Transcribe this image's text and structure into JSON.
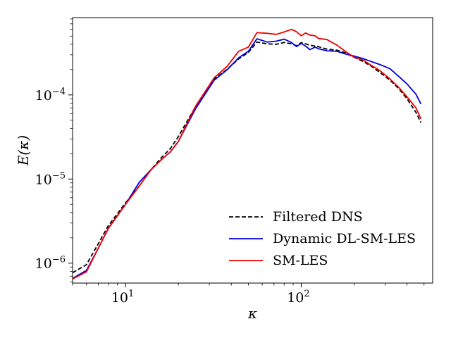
{
  "chart_data": {
    "type": "line",
    "title": "",
    "xlabel": "κ",
    "ylabel": "E(κ)",
    "xscale": "log",
    "yscale": "log",
    "xlim": [
      5,
      560
    ],
    "ylim": [
      5.8e-07,
      0.00083
    ],
    "xticks": [
      {
        "value": 10,
        "base": "10",
        "exp": "1"
      },
      {
        "value": 100,
        "base": "10",
        "exp": "2"
      }
    ],
    "yticks": [
      {
        "value": 1e-06,
        "base": "10",
        "exp": "−6"
      },
      {
        "value": 1e-05,
        "base": "10",
        "exp": "−5"
      },
      {
        "value": 0.0001,
        "base": "10",
        "exp": "−4"
      }
    ],
    "legend_position": "lower-right",
    "series": [
      {
        "name": "Filtered DNS",
        "color": "#000000",
        "style": "dashed",
        "x": [
          5,
          6,
          7,
          8,
          10,
          12,
          14,
          16,
          18,
          20,
          25,
          32,
          38,
          44,
          50,
          56,
          64,
          72,
          80,
          88,
          94,
          100,
          106,
          112,
          125,
          140,
          160,
          180,
          200,
          225,
          250,
          280,
          320,
          360,
          400,
          450,
          480
        ],
        "y": [
          7.7e-07,
          9.6e-07,
          1.7e-06,
          2.8e-06,
          5.2e-06,
          8.3e-06,
          1.3e-05,
          1.8e-05,
          2.3e-05,
          3.2e-05,
          7.2e-05,
          0.000155,
          0.000202,
          0.000268,
          0.00032,
          0.000425,
          0.000405,
          0.0004,
          0.00042,
          0.000405,
          0.000385,
          0.000418,
          0.000405,
          0.00039,
          0.000375,
          0.00035,
          0.00034,
          0.000315,
          0.00028,
          0.00025,
          0.00022,
          0.000185,
          0.00015,
          0.000118,
          9e-05,
          6.2e-05,
          4.7e-05
        ]
      },
      {
        "name": "Dynamic DL-SM-LES",
        "color": "#0000dd",
        "style": "solid",
        "x": [
          5,
          6,
          7,
          8,
          10,
          12,
          14,
          16,
          18,
          20,
          25,
          32,
          38,
          44,
          50,
          56,
          64,
          72,
          80,
          88,
          94,
          100,
          106,
          112,
          120,
          125,
          140,
          160,
          180,
          200,
          225,
          250,
          280,
          320,
          360,
          400,
          450,
          480
        ],
        "y": [
          6.6e-07,
          8.2e-07,
          1.5e-06,
          2.6e-06,
          5e-06,
          9.2e-06,
          1.3e-05,
          1.7e-05,
          2.1e-05,
          2.8e-05,
          6.8e-05,
          0.00015,
          0.0002,
          0.000275,
          0.00033,
          0.000465,
          0.000425,
          0.000435,
          0.00046,
          0.00042,
          0.000375,
          0.00041,
          0.00038,
          0.000345,
          0.00037,
          0.000355,
          0.000335,
          0.00033,
          0.000305,
          0.00029,
          0.00027,
          0.00025,
          0.00023,
          0.000205,
          0.000165,
          0.000135,
          0.000102,
          7.8e-05
        ]
      },
      {
        "name": "SM-LES",
        "color": "#ee0000",
        "style": "solid",
        "x": [
          5,
          6,
          7,
          8,
          10,
          12,
          14,
          16,
          18,
          20,
          25,
          32,
          38,
          44,
          50,
          56,
          64,
          72,
          80,
          88,
          94,
          100,
          106,
          112,
          120,
          125,
          140,
          160,
          180,
          200,
          225,
          250,
          280,
          320,
          360,
          400,
          450,
          480
        ],
        "y": [
          6.5e-07,
          7.9e-07,
          1.5e-06,
          2.6e-06,
          5e-06,
          8.3e-06,
          1.3e-05,
          1.7e-05,
          2.1e-05,
          2.8e-05,
          7.3e-05,
          0.00016,
          0.00022,
          0.00033,
          0.00037,
          0.00055,
          0.00054,
          0.000525,
          0.00056,
          0.0006,
          0.000565,
          0.000505,
          0.000545,
          0.000515,
          0.000505,
          0.00047,
          0.000455,
          0.00039,
          0.000325,
          0.00028,
          0.00026,
          0.000225,
          0.000195,
          0.000155,
          0.000122,
          9.5e-05,
          7e-05,
          5.2e-05
        ]
      }
    ]
  }
}
